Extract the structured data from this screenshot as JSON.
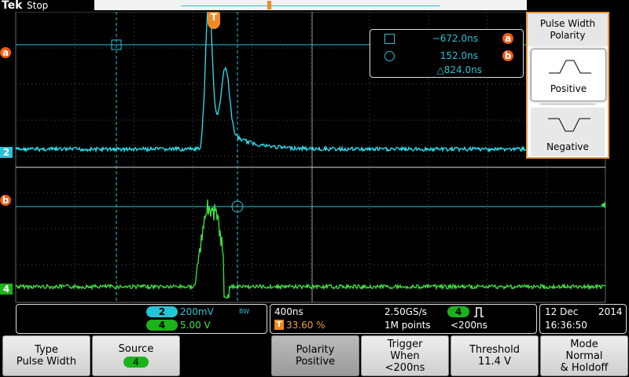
{
  "header": {
    "brand": "Tek",
    "status": "Stop"
  },
  "markers": {
    "cursor_a": "a",
    "cursor_b": "b",
    "channel_2": "2",
    "channel_4": "4",
    "trigger": "T"
  },
  "cursor_readout": {
    "a_time": "−672.0ns",
    "a_label": "a",
    "b_time": "152.0ns",
    "b_label": "b",
    "delta": "△824.0ns"
  },
  "side_menu": {
    "title": "Pulse Width Polarity",
    "options": [
      "Positive",
      "Negative"
    ]
  },
  "channels": [
    {
      "number": "2",
      "scale": "200mV",
      "bandwidth": "BW"
    },
    {
      "number": "4",
      "scale": "5.00 V"
    }
  ],
  "acquisition": {
    "time_per_div": "400ns",
    "trigger_position": "33.60 %",
    "sample_rate": "2.50GS/s",
    "record_length": "1M points",
    "trigger_source": "4",
    "trigger_condition": "<200ns"
  },
  "datetime": {
    "date": "12 Dec",
    "year": "2014",
    "time": "16:36:50"
  },
  "buttons": [
    {
      "lines": [
        "Type",
        "Pulse Width"
      ]
    },
    {
      "lines": [
        "Source"
      ],
      "badge": "4"
    },
    {
      "lines": [
        "Polarity",
        "Positive"
      ]
    },
    {
      "lines": [
        "Trigger",
        "When",
        "<200ns"
      ]
    },
    {
      "lines": [
        "Threshold",
        "11.4 V"
      ]
    },
    {
      "lines": [
        "Mode",
        "Normal",
        "& Holdoff"
      ]
    }
  ]
}
